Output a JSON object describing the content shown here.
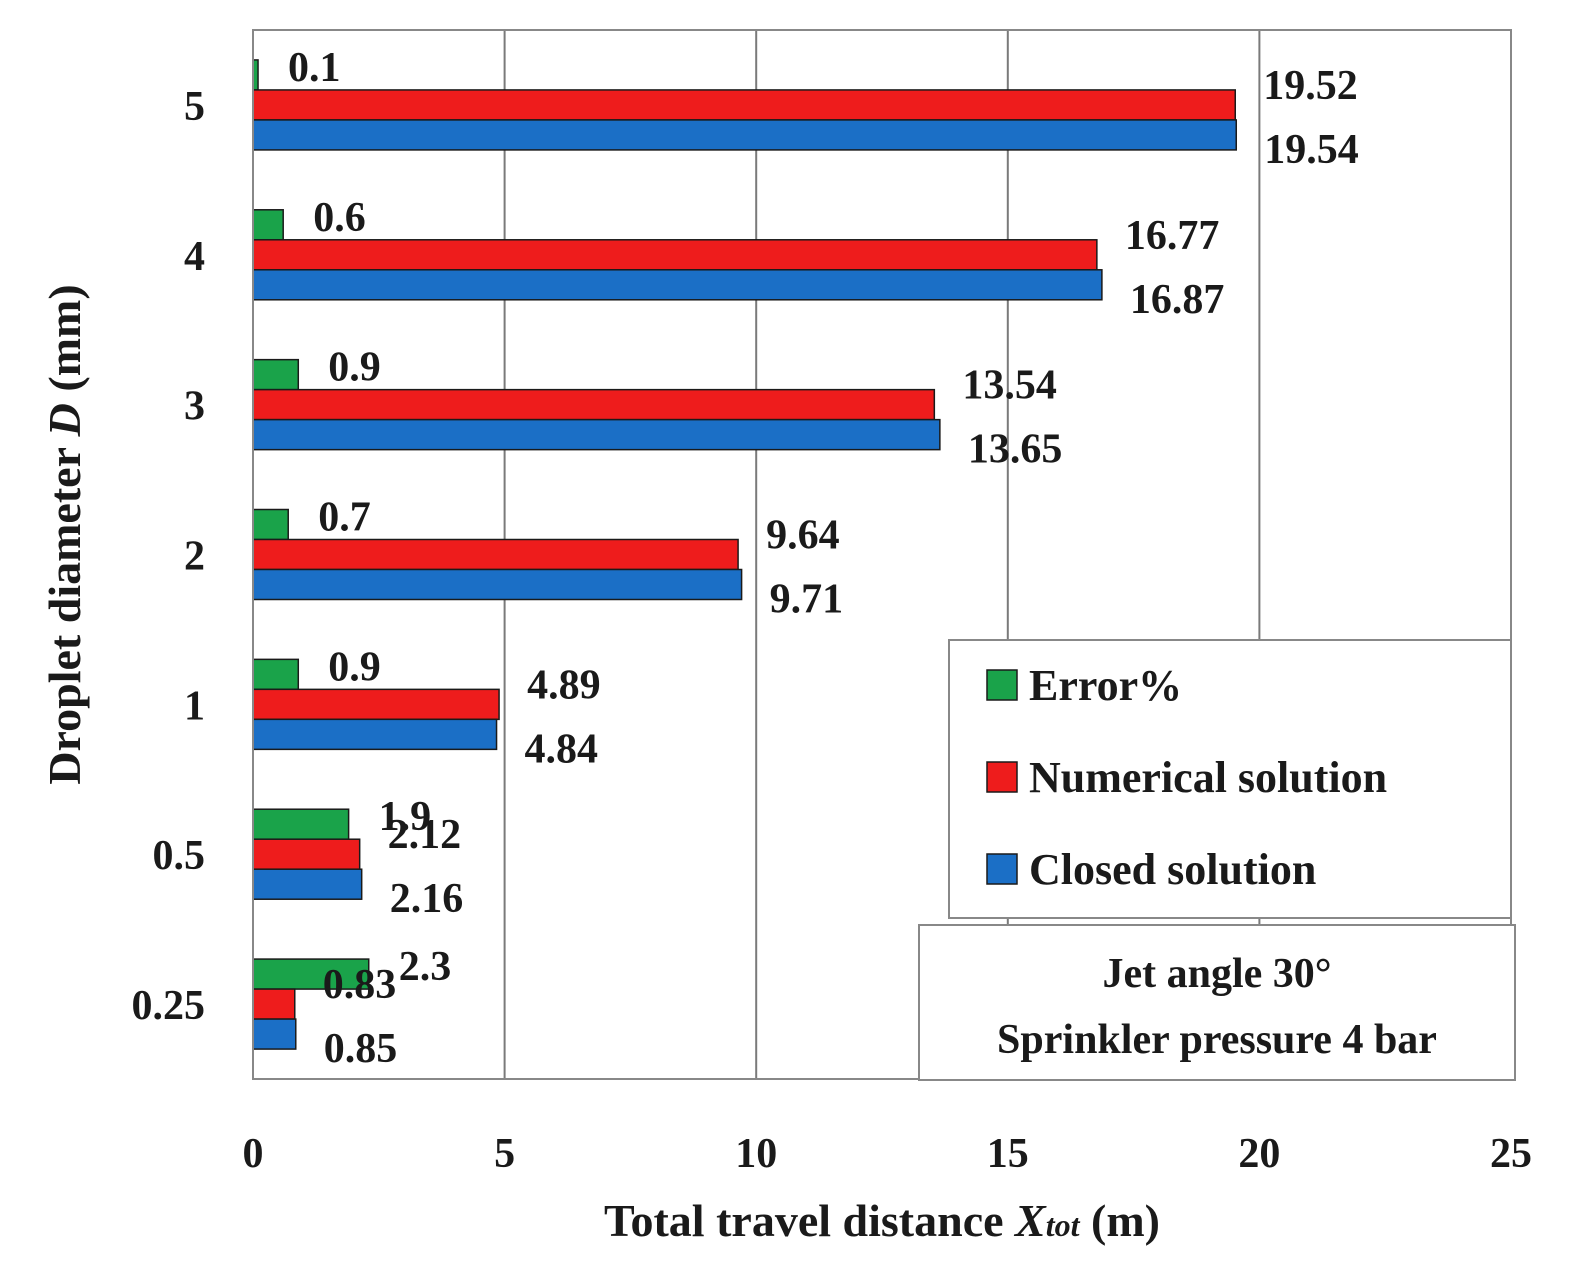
{
  "chart_data": {
    "type": "bar",
    "orientation": "horizontal",
    "categories": [
      "0.25",
      "0.5",
      "1",
      "2",
      "3",
      "4",
      "5"
    ],
    "series": [
      {
        "name": "Error%",
        "values": [
          2.3,
          1.9,
          0.9,
          0.7,
          0.9,
          0.6,
          0.1
        ],
        "labels": [
          "2.3",
          "1.9",
          "0.9",
          "0.7",
          "0.9",
          "0.6",
          "0.1"
        ],
        "color": "#1aa34a"
      },
      {
        "name": "Numerical solution",
        "values": [
          0.83,
          2.12,
          4.89,
          9.64,
          13.54,
          16.77,
          19.52
        ],
        "labels": [
          "0.83",
          "2.12",
          "4.89",
          "9.64",
          "13.54",
          "16.77",
          "19.52"
        ],
        "color": "#ee1c1c"
      },
      {
        "name": "Closed solution",
        "values": [
          0.85,
          2.16,
          4.84,
          9.71,
          13.65,
          16.87,
          19.54
        ],
        "labels": [
          "0.85",
          "2.16",
          "4.84",
          "9.71",
          "13.65",
          "16.87",
          "19.54"
        ],
        "color": "#1b6fc6"
      }
    ],
    "xlim": [
      0,
      25
    ],
    "x_ticks": [
      "0",
      "5",
      "10",
      "15",
      "20",
      "25"
    ],
    "xlabel": {
      "prefix": "Total travel distance ",
      "var": "X",
      "sub": "tot",
      "suffix": " (m)"
    },
    "ylabel": {
      "prefix": "Droplet diameter ",
      "var": "D",
      "suffix": " (mm)"
    },
    "grid": "vertical",
    "legend_position": "lower-right",
    "note": [
      "Jet angle 30°",
      "Sprinkler pressure 4 bar"
    ]
  }
}
